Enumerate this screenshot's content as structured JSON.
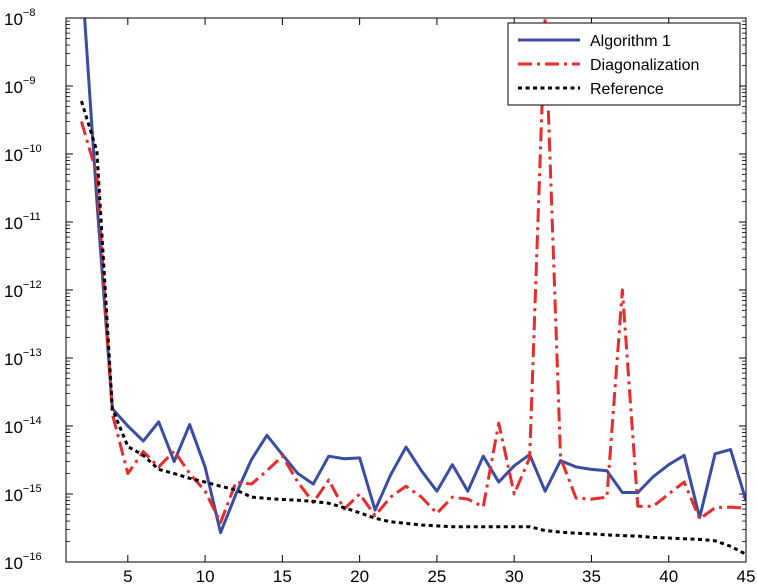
{
  "chart_data": {
    "type": "line",
    "title": "",
    "xlabel": "",
    "ylabel": "",
    "xlim": [
      1,
      45
    ],
    "ylim": [
      1e-16,
      1e-08
    ],
    "yscale": "log",
    "grid": false,
    "legend_position": "top-right",
    "x_ticks": [
      5,
      10,
      15,
      20,
      25,
      30,
      35,
      40,
      45
    ],
    "x_tick_labels": [
      "5",
      "10",
      "15",
      "20",
      "25",
      "30",
      "35",
      "40",
      "45"
    ],
    "y_ticks": [
      1e-16,
      1e-15,
      1e-14,
      1e-13,
      1e-12,
      1e-11,
      1e-10,
      1e-09,
      1e-08
    ],
    "y_tick_labels": [
      {
        "base": "10",
        "exp": "−16"
      },
      {
        "base": "10",
        "exp": "−15"
      },
      {
        "base": "10",
        "exp": "−14"
      },
      {
        "base": "10",
        "exp": "−13"
      },
      {
        "base": "10",
        "exp": "−12"
      },
      {
        "base": "10",
        "exp": "−11"
      },
      {
        "base": "10",
        "exp": "−10"
      },
      {
        "base": "10",
        "exp": "−9"
      },
      {
        "base": "10",
        "exp": "−8"
      }
    ],
    "x": [
      2,
      3,
      4,
      5,
      6,
      7,
      8,
      9,
      10,
      11,
      12,
      13,
      14,
      15,
      16,
      17,
      18,
      19,
      20,
      21,
      22,
      23,
      24,
      25,
      26,
      27,
      28,
      29,
      30,
      31,
      32,
      33,
      34,
      35,
      36,
      37,
      38,
      39,
      40,
      41,
      42,
      43,
      44,
      45
    ],
    "series": [
      {
        "name": "Algorithm 1",
        "color": "#3b4da0",
        "style": "solid",
        "values": [
          5e-08,
          2e-11,
          1.8e-14,
          1e-14,
          6e-15,
          1.15e-14,
          3e-15,
          1.05e-14,
          2.5e-15,
          2.7e-16,
          1e-15,
          3.2e-15,
          7.3e-15,
          3.8e-15,
          2e-15,
          1.4e-15,
          3.6e-15,
          3.3e-15,
          3.4e-15,
          5.8e-16,
          1.9e-15,
          4.9e-15,
          2.2e-15,
          1.1e-15,
          2.7e-15,
          1.1e-15,
          3.6e-15,
          1.5e-15,
          2.6e-15,
          3.8e-15,
          1.1e-15,
          3.1e-15,
          2.5e-15,
          2.3e-15,
          2.2e-15,
          1.05e-15,
          1.05e-15,
          1.8e-15,
          2.7e-15,
          3.7e-15,
          4.5e-16,
          3.9e-15,
          4.5e-15,
          8e-16
        ]
      },
      {
        "name": "Diagonalization",
        "color": "#e82b2b",
        "style": "dashdot",
        "values": [
          3e-10,
          5e-11,
          1.5e-14,
          2e-15,
          4.2e-15,
          2.5e-15,
          4.3e-15,
          2e-15,
          1.1e-15,
          3.8e-16,
          1.5e-15,
          1.4e-15,
          2.2e-15,
          3.6e-15,
          1.5e-15,
          7.5e-16,
          1.6e-15,
          6e-16,
          1e-15,
          4.8e-16,
          9e-16,
          1.3e-15,
          9e-16,
          5.2e-16,
          9e-16,
          8.4e-16,
          6.5e-16,
          1.1e-14,
          1e-15,
          3.4e-15,
          1e-08,
          3.4e-15,
          8.7e-16,
          8.4e-16,
          9e-16,
          1e-12,
          6.6e-16,
          6.6e-16,
          1e-15,
          1.5e-15,
          4.3e-16,
          6.3e-16,
          6.4e-16,
          6.2e-16
        ]
      },
      {
        "name": "Reference",
        "color": "#000000",
        "style": "dotted",
        "values": [
          6e-10,
          1.1e-10,
          1.8e-14,
          5e-15,
          3.7e-15,
          2.3e-15,
          2e-15,
          1.7e-15,
          1.5e-15,
          1.3e-15,
          1.15e-15,
          9e-16,
          8.6e-16,
          8.3e-16,
          8.1e-16,
          7.8e-16,
          7.3e-16,
          6.3e-16,
          5.3e-16,
          4.4e-16,
          3.9e-16,
          3.7e-16,
          3.5e-16,
          3.4e-16,
          3.3e-16,
          3.3e-16,
          3.3e-16,
          3.3e-16,
          3.3e-16,
          3.3e-16,
          2.9e-16,
          2.75e-16,
          2.65e-16,
          2.6e-16,
          2.5e-16,
          2.45e-16,
          2.4e-16,
          2.3e-16,
          2.25e-16,
          2.2e-16,
          2.15e-16,
          2.05e-16,
          1.7e-16,
          1.3e-16
        ]
      }
    ]
  }
}
